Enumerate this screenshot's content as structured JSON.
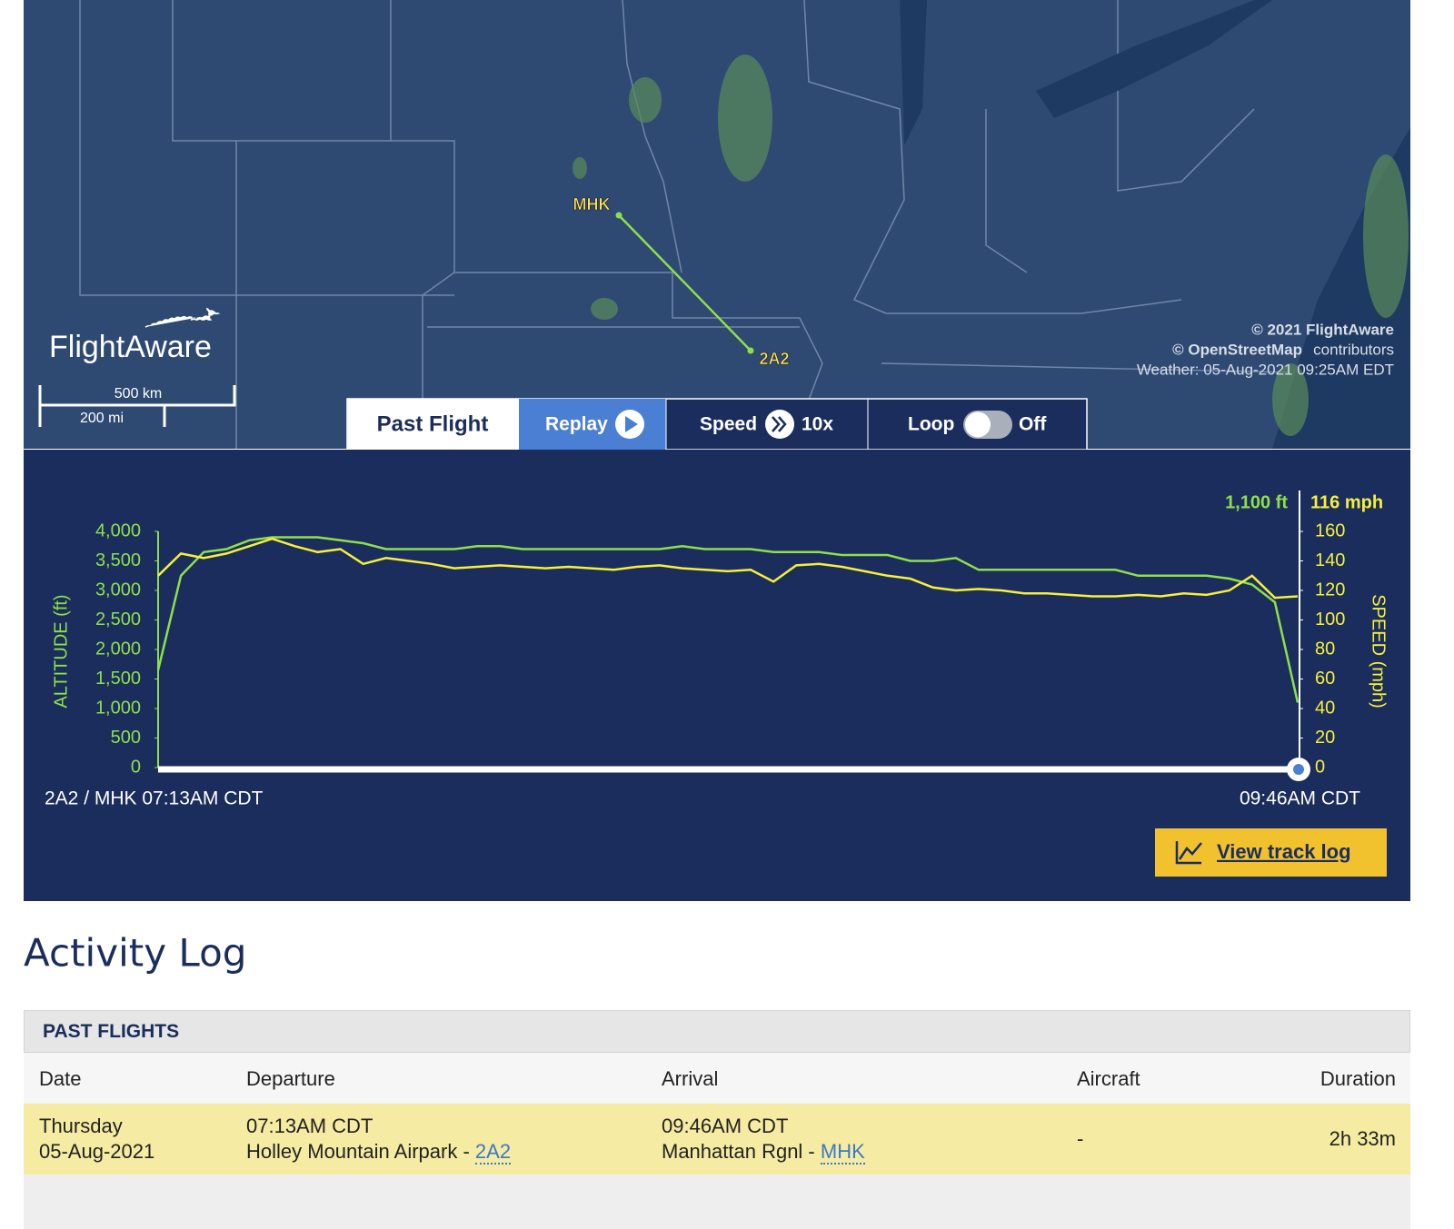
{
  "map": {
    "airports": [
      "MHK",
      "2A2"
    ],
    "logo": "FlightAware",
    "scale": [
      "500 km",
      "200 mi"
    ],
    "attribution": [
      "© 2021 FlightAware",
      "© OpenStreetMap",
      "contributors",
      "Weather: 05-Aug-2021 09:25AM EDT"
    ]
  },
  "controls": {
    "past_flight": "Past Flight",
    "replay": "Replay",
    "speed": "Speed",
    "speed_value": "10x",
    "loop": "Loop",
    "loop_state": "Off"
  },
  "chart_data": {
    "type": "line",
    "ylabel": "ALTITUDE (ft)",
    "y2label": "SPEED (mph)",
    "readouts": [
      "1,100 ft",
      "116 mph"
    ],
    "x_start_label": "2A2 / MHK 07:13AM CDT",
    "x_end_label": "09:46AM CDT",
    "ylim": [
      0,
      4000
    ],
    "yticks": [
      0,
      500,
      {
        "value": 1000,
        "label": "1,000"
      },
      {
        "value": 1500,
        "label": "1,500"
      },
      {
        "value": 2000,
        "label": "2,000"
      },
      {
        "value": 2500,
        "label": "2,500"
      },
      {
        "value": 3000,
        "label": "3,000"
      },
      {
        "value": 3500,
        "label": "3,500"
      },
      {
        "value": 4000,
        "label": "4,000"
      }
    ],
    "y2lim": [
      0,
      160
    ],
    "y2ticks": [
      0,
      20,
      40,
      60,
      80,
      100,
      120,
      140,
      160
    ],
    "series": [
      {
        "color": "#8ee04a",
        "values": [
          1650,
          3250,
          3650,
          3700,
          3850,
          3900,
          3900,
          3900,
          3850,
          3800,
          3700,
          3700,
          3700,
          3700,
          3750,
          3750,
          3700,
          3700,
          3700,
          3700,
          3700,
          3700,
          3700,
          3750,
          3700,
          3700,
          3700,
          3650,
          3650,
          3650,
          3600,
          3600,
          3600,
          3500,
          3500,
          3550,
          3350,
          3350,
          3350,
          3350,
          3350,
          3350,
          3350,
          3250,
          3250,
          3250,
          3250,
          3200,
          3100,
          2800,
          1100
        ]
      },
      {
        "color": "#f6f03c",
        "axis": "y2",
        "values": [
          130,
          145,
          142,
          145,
          150,
          155,
          150,
          146,
          148,
          138,
          142,
          140,
          138,
          135,
          136,
          137,
          136,
          135,
          136,
          135,
          134,
          136,
          137,
          135,
          134,
          133,
          134,
          126,
          137,
          138,
          136,
          133,
          130,
          128,
          122,
          120,
          121,
          120,
          118,
          118,
          117,
          116,
          116,
          117,
          116,
          118,
          117,
          120,
          130,
          115,
          116
        ]
      }
    ],
    "button": "View track log"
  },
  "activity_log": {
    "title": "Activity Log",
    "caption": "PAST FLIGHTS",
    "columns": [
      "Date",
      "Departure",
      "Arrival",
      "Aircraft",
      "Duration"
    ],
    "rows": [
      {
        "day": "Thursday",
        "date": "05-Aug-2021",
        "departure_time": "07:13AM CDT",
        "departure_airport": "Holley Mountain Airpark -",
        "departure_code": "2A2",
        "arrival_time": "09:46AM CDT",
        "arrival_airport": "Manhattan Rgnl -",
        "arrival_code": "MHK",
        "aircraft": "-",
        "duration": "2h 33m"
      }
    ]
  }
}
